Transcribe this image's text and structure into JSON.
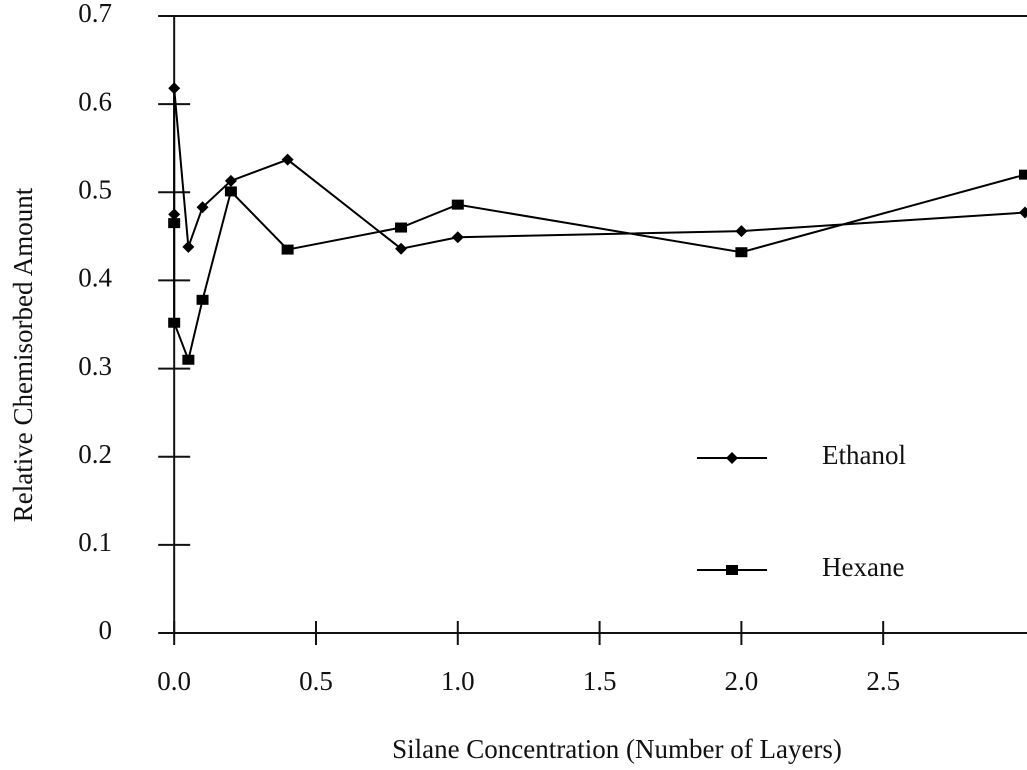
{
  "chart_data": {
    "type": "line",
    "xlabel": "Silane Concentration (Number of Layers)",
    "ylabel": "Relative Chemisorbed Amount",
    "xlim": [
      -0.05,
      3.0
    ],
    "xticks": [
      {
        "value": 0,
        "label": "0.0"
      },
      0.5,
      {
        "value": 1,
        "label": "1.0"
      },
      1.5,
      {
        "value": 2,
        "label": "2.0"
      },
      2.5
    ],
    "ylim": [
      0,
      0.7
    ],
    "yticks": [
      0,
      0.1,
      0.2,
      0.3,
      0.4,
      0.5,
      0.6,
      0.7
    ],
    "legend": "lower right",
    "series": [
      {
        "name": "Ethanol",
        "color": "#000000",
        "marker": "diamond",
        "x": [
          0,
          0,
          0.05,
          0.1,
          0.2,
          0.4,
          0.8,
          1.0,
          2.0,
          3.0
        ],
        "values": [
          0.475,
          0.618,
          0.438,
          0.483,
          0.513,
          0.537,
          0.436,
          0.449,
          0.456,
          0.477
        ]
      },
      {
        "name": "Hexane",
        "color": "#000000",
        "marker": "square",
        "x": [
          0,
          0,
          0.05,
          0.1,
          0.2,
          0.4,
          0.8,
          1.0,
          2.0,
          3.0
        ],
        "values": [
          0.465,
          0.352,
          0.31,
          0.378,
          0.501,
          0.435,
          0.46,
          0.486,
          0.432,
          0.52
        ]
      }
    ]
  }
}
